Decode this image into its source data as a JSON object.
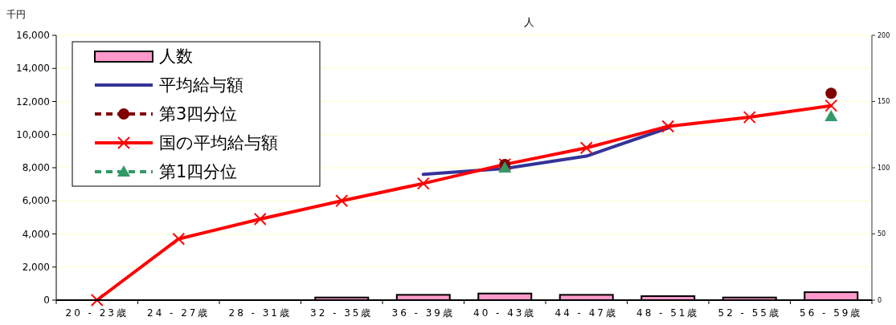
{
  "chart_data": {
    "type": "line",
    "ylabel": "千円",
    "y2label": "人",
    "categories": [
      "20 - 23歳",
      "24 - 27歳",
      "28 - 31歳",
      "32 - 35歳",
      "36 - 39歳",
      "40 - 43歳",
      "44 - 47歳",
      "48 - 51歳",
      "52 - 55歳",
      "56 - 59歳"
    ],
    "series": [
      {
        "name": "人数",
        "type": "bar",
        "axis": "y2",
        "color": "#ff99cc",
        "values": [
          0,
          0,
          0,
          2,
          4,
          5,
          4,
          3,
          2,
          6
        ]
      },
      {
        "name": "平均給与額",
        "color": "#333399",
        "marker": "none",
        "values": [
          null,
          null,
          null,
          null,
          7600,
          7950,
          8700,
          10400,
          null,
          null
        ]
      },
      {
        "name": "第3四分位",
        "type": "scatter",
        "color": "#800000",
        "marker": "circle",
        "line_style": "dashed",
        "values": [
          null,
          null,
          null,
          null,
          null,
          8200,
          null,
          null,
          null,
          12500
        ]
      },
      {
        "name": "国の平均給与額",
        "color": "#ff0000",
        "marker": "cross",
        "values": [
          0,
          3700,
          4900,
          6000,
          7050,
          8200,
          9200,
          10500,
          11050,
          11750
        ]
      },
      {
        "name": "第1四分位",
        "type": "scatter",
        "color": "#339966",
        "marker": "triangle",
        "line_style": "dashed",
        "values": [
          null,
          null,
          null,
          null,
          null,
          8000,
          null,
          null,
          null,
          11100
        ]
      }
    ],
    "ylim": [
      0,
      16000
    ],
    "yticks": [
      {
        "value": 0,
        "label": "0"
      },
      {
        "value": 2000,
        "label": "2,000"
      },
      {
        "value": 4000,
        "label": "4,000"
      },
      {
        "value": 6000,
        "label": "6,000"
      },
      {
        "value": 8000,
        "label": "8,000"
      },
      {
        "value": 10000,
        "label": "10,000"
      },
      {
        "value": 12000,
        "label": "12,000"
      },
      {
        "value": 14000,
        "label": "14,000"
      },
      {
        "value": 16000,
        "label": "16,000"
      }
    ],
    "y2lim": [
      0,
      200
    ],
    "y2ticks": [
      0,
      50,
      100,
      150,
      200
    ],
    "grid": "y",
    "legend": "top left"
  }
}
